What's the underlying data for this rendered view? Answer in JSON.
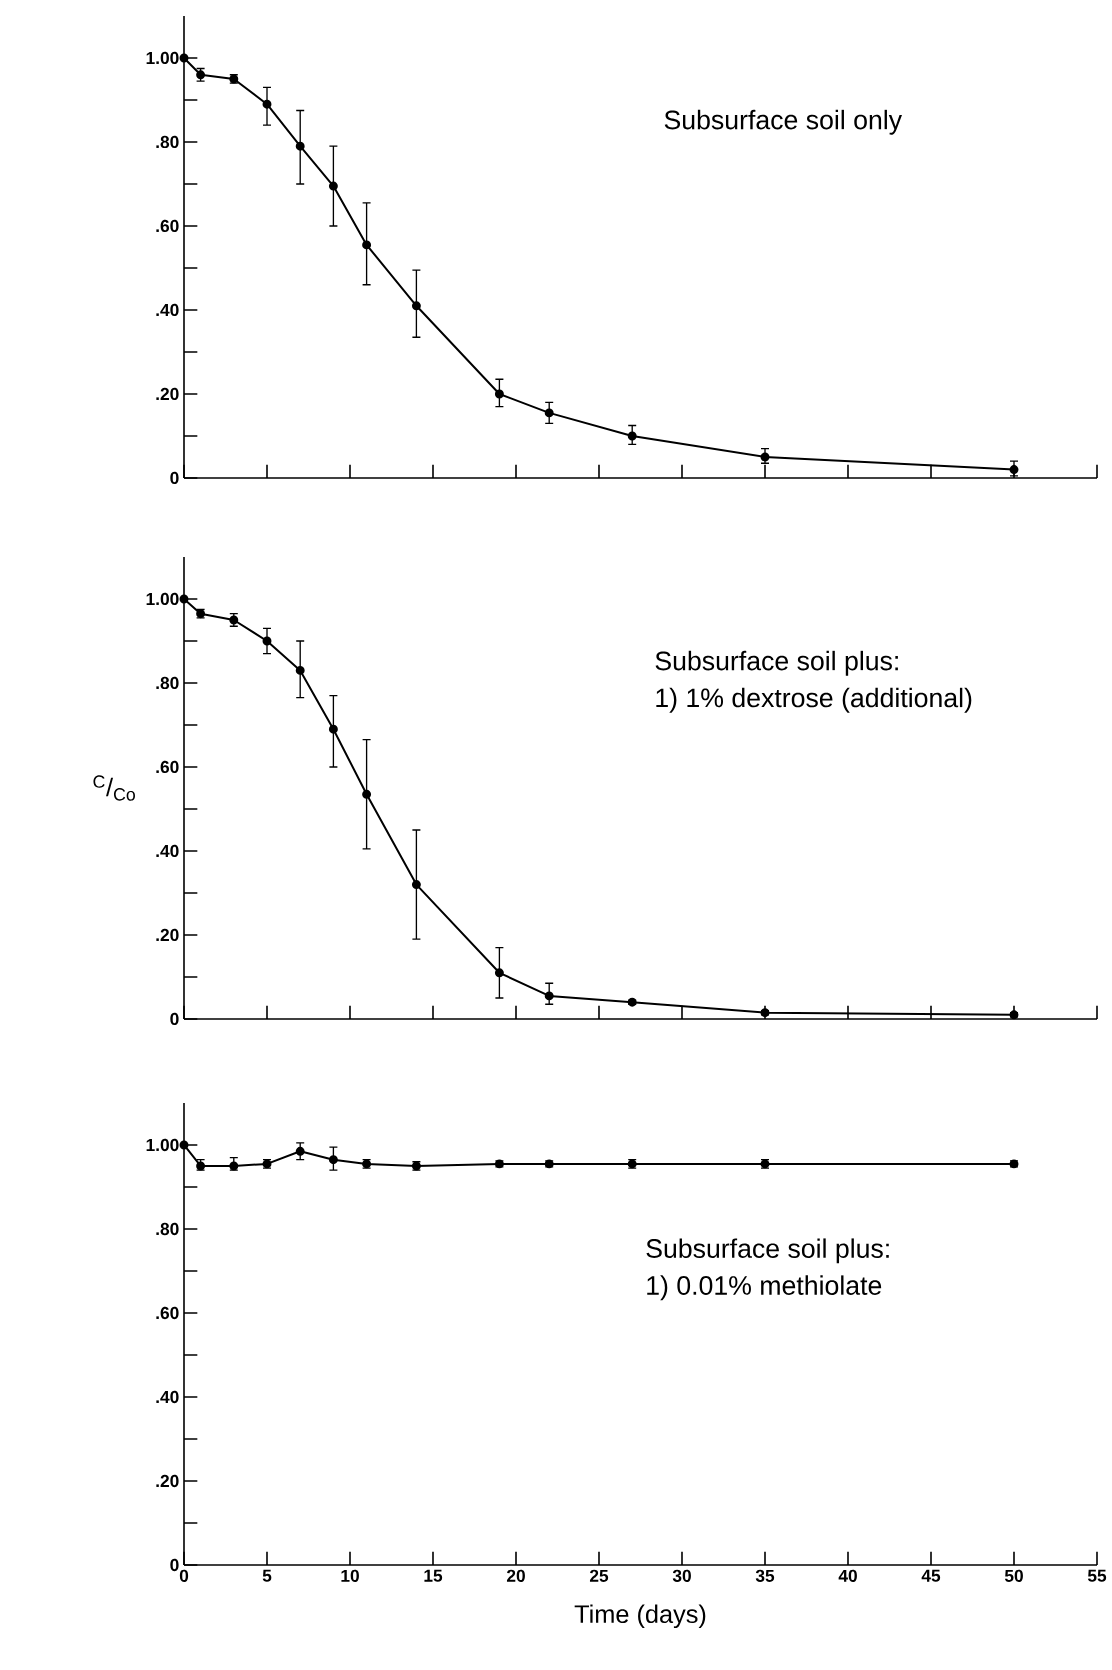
{
  "chart_data": [
    {
      "type": "line",
      "x": [
        0,
        1,
        3,
        5,
        7,
        9,
        11,
        14,
        19,
        22,
        27,
        35,
        50
      ],
      "color": "#000000",
      "marker": "circle",
      "values": [
        1.0,
        0.96,
        0.95,
        0.89,
        0.79,
        0.695,
        0.555,
        0.41,
        0.2,
        0.155,
        0.1,
        0.05,
        0.02
      ],
      "errors": [
        null,
        0.015,
        0.01,
        [
          0.84,
          0.93
        ],
        [
          0.7,
          0.875
        ],
        [
          0.6,
          0.79
        ],
        [
          0.46,
          0.655
        ],
        [
          0.335,
          0.495
        ],
        [
          0.17,
          0.235
        ],
        [
          0.13,
          0.18
        ],
        [
          0.08,
          0.125
        ],
        [
          0.035,
          0.07
        ],
        [
          0.005,
          0.04
        ]
      ],
      "xlim": [
        0,
        55
      ],
      "xticks": [
        0,
        5,
        10,
        15,
        20,
        25,
        30,
        35,
        40,
        45,
        50,
        55
      ],
      "ylim": [
        0,
        1.1
      ],
      "yticks": [
        0,
        {
          "value": 0.1,
          "label": null
        },
        {
          "value": 0.2,
          "label": ".20"
        },
        {
          "value": 0.3,
          "label": null
        },
        {
          "value": 0.4,
          "label": ".40"
        },
        {
          "value": 0.5,
          "label": null
        },
        {
          "value": 0.6,
          "label": ".60"
        },
        {
          "value": 0.7,
          "label": null
        },
        {
          "value": 0.8,
          "label": ".80"
        },
        {
          "value": 0.9,
          "label": null
        },
        {
          "value": 1.0,
          "label": "1.00"
        }
      ],
      "tick_labels": "y",
      "annotations": [
        "Subsurface soil only"
      ]
    },
    {
      "type": "line",
      "x": [
        0,
        1,
        3,
        5,
        7,
        9,
        11,
        14,
        19,
        22,
        27,
        35,
        50
      ],
      "color": "#000000",
      "marker": "circle",
      "values": [
        1.0,
        0.965,
        0.95,
        0.9,
        0.83,
        0.69,
        0.535,
        0.32,
        0.11,
        0.055,
        0.04,
        0.015,
        0.01
      ],
      "errors": [
        null,
        0.01,
        [
          0.935,
          0.965
        ],
        [
          0.87,
          0.93
        ],
        [
          0.765,
          0.9
        ],
        [
          0.6,
          0.77
        ],
        [
          0.405,
          0.665
        ],
        [
          0.19,
          0.45
        ],
        [
          0.05,
          0.17
        ],
        [
          0.035,
          0.085
        ],
        0.005,
        0.005,
        0.005
      ],
      "xlim": [
        0,
        55
      ],
      "xticks": [
        0,
        5,
        10,
        15,
        20,
        25,
        30,
        35,
        40,
        45,
        50,
        55
      ],
      "ylim": [
        0,
        1.1
      ],
      "yticks": [
        0,
        {
          "value": 0.1,
          "label": null
        },
        {
          "value": 0.2,
          "label": ".20"
        },
        {
          "value": 0.3,
          "label": null
        },
        {
          "value": 0.4,
          "label": ".40"
        },
        {
          "value": 0.5,
          "label": null
        },
        {
          "value": 0.6,
          "label": ".60"
        },
        {
          "value": 0.7,
          "label": null
        },
        {
          "value": 0.8,
          "label": ".80"
        },
        {
          "value": 0.9,
          "label": null
        },
        {
          "value": 1.0,
          "label": "1.00"
        }
      ],
      "tick_labels": "y",
      "ylabel": "$^{C}$/$_{Co}$",
      "annotations": [
        "Subsurface soil plus:",
        "1) 1% dextrose (additional)"
      ]
    },
    {
      "type": "line",
      "x": [
        0,
        1,
        3,
        5,
        7,
        9,
        11,
        14,
        19,
        22,
        27,
        35,
        50
      ],
      "color": "#000000",
      "marker": "circle",
      "values": [
        1.0,
        0.95,
        0.95,
        0.955,
        0.985,
        0.965,
        0.955,
        0.95,
        0.955,
        0.955,
        0.955,
        0.955,
        0.955
      ],
      "errors": [
        null,
        [
          0.94,
          0.965
        ],
        [
          0.94,
          0.97
        ],
        0.01,
        [
          0.965,
          1.005
        ],
        [
          0.94,
          0.995
        ],
        0.01,
        0.01,
        0.007,
        0.007,
        0.01,
        0.01,
        0.007
      ],
      "xlim": [
        0,
        55
      ],
      "xticks": [
        0,
        5,
        10,
        15,
        20,
        25,
        30,
        35,
        40,
        45,
        50,
        55
      ],
      "ylim": [
        0,
        1.1
      ],
      "yticks": [
        0,
        {
          "value": 0.1,
          "label": null
        },
        {
          "value": 0.2,
          "label": ".20"
        },
        {
          "value": 0.3,
          "label": null
        },
        {
          "value": 0.4,
          "label": ".40"
        },
        {
          "value": 0.5,
          "label": null
        },
        {
          "value": 0.6,
          "label": ".60"
        },
        {
          "value": 0.7,
          "label": null
        },
        {
          "value": 0.8,
          "label": ".80"
        },
        {
          "value": 0.9,
          "label": null
        },
        {
          "value": 1.0,
          "label": "1.00"
        }
      ],
      "xlabel": "Time (days)",
      "annotations": [
        "Subsurface soil plus:",
        "1) 0.01% methiolate"
      ]
    }
  ]
}
